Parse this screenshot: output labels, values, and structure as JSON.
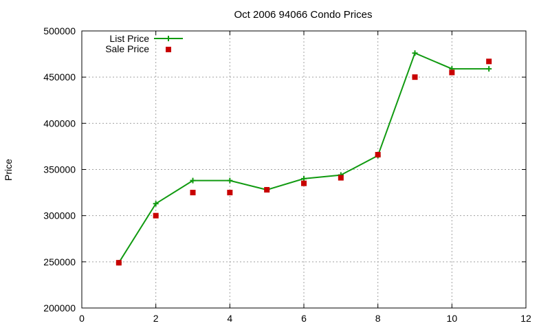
{
  "chart_data": {
    "type": "line",
    "title": "Oct 2006 94066 Condo Prices",
    "xlabel": "",
    "ylabel": "Price",
    "xlim": [
      0,
      12
    ],
    "ylim": [
      200000,
      500000
    ],
    "xticks": [
      0,
      2,
      4,
      6,
      8,
      10,
      12
    ],
    "yticks": [
      200000,
      250000,
      300000,
      350000,
      400000,
      450000,
      500000
    ],
    "grid": true,
    "legend_position": "top-left",
    "series": [
      {
        "name": "List Price",
        "style": "line+plus",
        "color": "#109a10",
        "x": [
          1,
          2,
          3,
          4,
          5,
          6,
          7,
          8,
          9,
          10,
          11
        ],
        "y": [
          249000,
          313000,
          338000,
          338000,
          328000,
          340000,
          344000,
          365000,
          476000,
          459000,
          459000
        ]
      },
      {
        "name": "Sale Price",
        "style": "squares",
        "color": "#c80000",
        "x": [
          1,
          2,
          3,
          4,
          5,
          6,
          7,
          8,
          9,
          10,
          11
        ],
        "y": [
          249000,
          300000,
          325000,
          325000,
          328000,
          335000,
          341000,
          366000,
          450000,
          455000,
          467000
        ]
      }
    ]
  }
}
